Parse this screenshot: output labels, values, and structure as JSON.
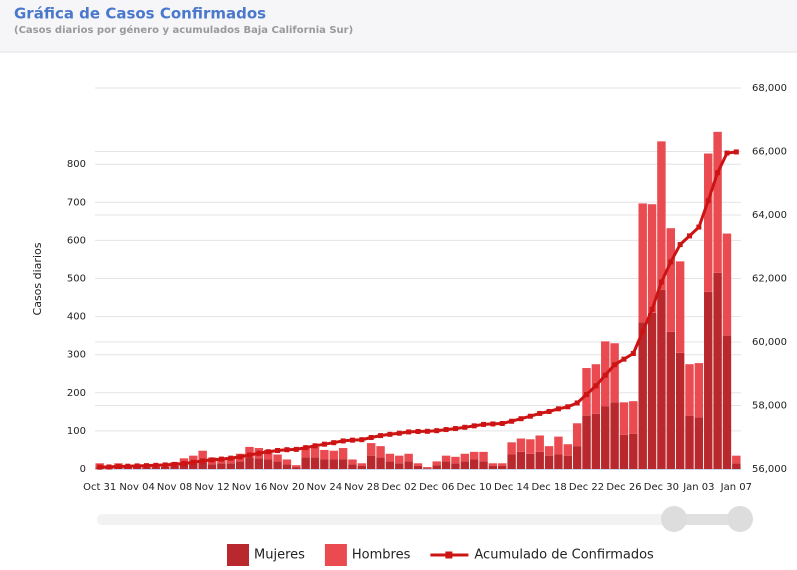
{
  "chart_data": {
    "type": "bar",
    "title": "Gráfica de Casos Confirmados",
    "subtitle": "(Casos diarios por género y acumulados Baja California Sur)",
    "ylabel": "Casos diarios",
    "stacked": true,
    "categories": [
      "Oct 31",
      null,
      null,
      null,
      "Nov 04",
      null,
      null,
      null,
      "Nov 08",
      null,
      null,
      null,
      "Nov 12",
      null,
      null,
      null,
      "Nov 16",
      null,
      null,
      null,
      "Nov 20",
      null,
      null,
      null,
      "Nov 24",
      null,
      null,
      null,
      "Nov 28",
      null,
      null,
      null,
      "Dec 02",
      null,
      null,
      null,
      "Dec 06",
      null,
      null,
      null,
      "Dec 10",
      null,
      null,
      null,
      "Dec 14",
      null,
      null,
      null,
      "Dec 18",
      null,
      null,
      null,
      "Dec 22",
      null,
      null,
      null,
      "Dec 26",
      null,
      null,
      null,
      "Dec 30",
      null,
      null,
      null,
      "Jan 03",
      null,
      null,
      null,
      "Jan 07"
    ],
    "series": [
      {
        "name": "Mujeres",
        "color": "#b8282d",
        "values": [
          5,
          2,
          6,
          4,
          5,
          4,
          5,
          6,
          8,
          12,
          15,
          20,
          12,
          15,
          15,
          20,
          30,
          28,
          25,
          20,
          12,
          5,
          30,
          30,
          25,
          25,
          25,
          12,
          8,
          35,
          30,
          20,
          15,
          20,
          8,
          2,
          10,
          20,
          15,
          20,
          25,
          20,
          8,
          8,
          38,
          45,
          40,
          45,
          35,
          38,
          35,
          60,
          140,
          145,
          165,
          175,
          90,
          92,
          385,
          410,
          470,
          360,
          305,
          140,
          135,
          465,
          515,
          350,
          15
        ]
      },
      {
        "name": "Hombres",
        "color": "#ea4b50",
        "values": [
          10,
          3,
          9,
          4,
          5,
          4,
          5,
          6,
          10,
          16,
          20,
          28,
          18,
          10,
          15,
          20,
          28,
          27,
          25,
          18,
          13,
          5,
          25,
          28,
          25,
          23,
          30,
          13,
          7,
          33,
          30,
          20,
          20,
          20,
          7,
          3,
          10,
          15,
          17,
          20,
          20,
          25,
          7,
          7,
          32,
          35,
          38,
          43,
          25,
          47,
          30,
          60,
          125,
          130,
          170,
          155,
          85,
          86,
          312,
          285,
          390,
          272,
          240,
          135,
          143,
          363,
          370,
          268,
          20
        ]
      },
      {
        "name": "Acumulado de Confirmados",
        "type": "line",
        "axis": "y2",
        "color": "#cc1414",
        "values": [
          56060,
          56065,
          56080,
          56088,
          56098,
          56106,
          56116,
          56128,
          56146,
          56174,
          56209,
          56257,
          56287,
          56312,
          56342,
          56382,
          56440,
          56495,
          56545,
          56583,
          56608,
          56618,
          56673,
          56731,
          56781,
          56829,
          56884,
          56909,
          56924,
          56992,
          57052,
          57092,
          57127,
          57167,
          57182,
          57187,
          57207,
          57242,
          57274,
          57314,
          57359,
          57404,
          57419,
          57434,
          57504,
          57584,
          57662,
          57750,
          57810,
          57895,
          57960,
          58080,
          58345,
          58620,
          58955,
          59285,
          59460,
          59638,
          60335,
          61030,
          61890,
          62522,
          63067,
          63342,
          63620,
          64448,
          65333,
          65951,
          65986
        ]
      }
    ],
    "ylim": [
      0,
      1000
    ],
    "yticks": [
      0,
      100,
      200,
      300,
      400,
      500,
      600,
      700,
      800
    ],
    "y2lim": [
      56000,
      68000
    ],
    "y2ticks": [
      {
        "value": 56000,
        "label": "56,000"
      },
      {
        "value": 58000,
        "label": "58,000"
      },
      {
        "value": 60000,
        "label": "60,000"
      },
      {
        "value": 62000,
        "label": "62,000"
      },
      {
        "value": 64000,
        "label": "64,000"
      },
      {
        "value": 66000,
        "label": "66,000"
      },
      {
        "value": 68000,
        "label": "68,000"
      }
    ],
    "grid": true,
    "legend": "bottom"
  }
}
